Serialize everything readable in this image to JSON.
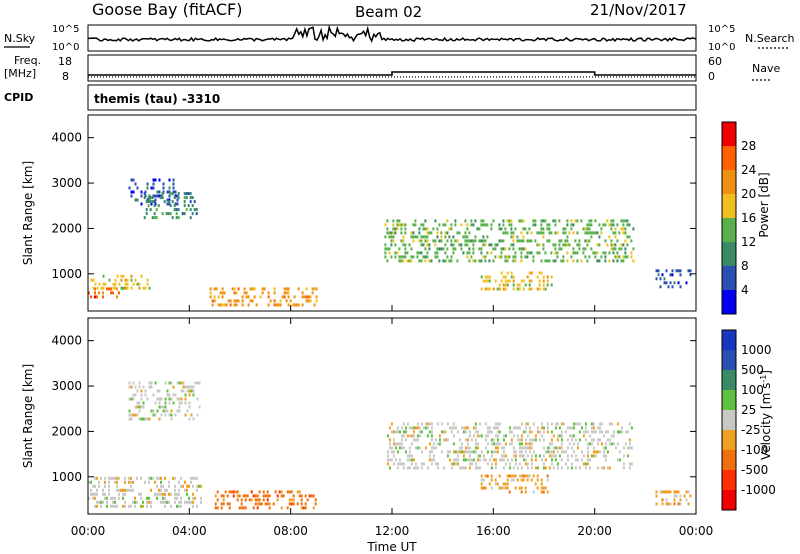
{
  "header": {
    "station": "Goose Bay (fitACF)",
    "beam": "Beam 02",
    "date": "21/Nov/2017"
  },
  "top_panels": {
    "nsky_label": "N.Sky",
    "nsky_ticks": [
      "10^5",
      "10^0"
    ],
    "nsearch_label": "N.Search",
    "nsearch_ticks": [
      "10^5",
      "10^0"
    ],
    "freq_label": "Freq.",
    "freq_unit": "[MHz]",
    "freq_ticks": [
      "18",
      "8"
    ],
    "nave_label": "Nave",
    "nave_ticks": [
      "60",
      "0"
    ],
    "cpid_label": "CPID",
    "cpid_value": "themis (tau) -3310"
  },
  "colors": {
    "power": [
      "#0000ee",
      "#2a4fb0",
      "#3a8a66",
      "#58b04a",
      "#f0c020",
      "#f09010",
      "#ff6000",
      "#ee0000"
    ],
    "velocity": [
      "#ee0000",
      "#ff3000",
      "#f07010",
      "#f0a020",
      "#c8c8c4",
      "#60c040",
      "#3a8a66",
      "#2a4fb0",
      "#1a36c0"
    ]
  },
  "chart_data": [
    {
      "type": "heatmap",
      "name": "power",
      "ylabel": "Slant Range [km]",
      "ylim": [
        180,
        4500
      ],
      "yticks": [
        "4000",
        "3000",
        "2000",
        "1000"
      ],
      "xlim": [
        0,
        24
      ],
      "colorbar_label": "Power [dB]",
      "colorbar_ticks": [
        "28",
        "24",
        "20",
        "16",
        "12",
        "8",
        "4"
      ],
      "regions": [
        {
          "t": [
            0.0,
            1.3
          ],
          "r": [
            450,
            700
          ],
          "level": 6
        },
        {
          "t": [
            0.1,
            2.4
          ],
          "r": [
            700,
            980
          ],
          "level": 4
        },
        {
          "t": [
            1.6,
            3.5
          ],
          "r": [
            2500,
            3100
          ],
          "level": 1
        },
        {
          "t": [
            2.2,
            4.3
          ],
          "r": [
            2200,
            2800
          ],
          "level": 2
        },
        {
          "t": [
            4.8,
            9.0
          ],
          "r": [
            300,
            700
          ],
          "level": 5
        },
        {
          "t": [
            11.7,
            21.5
          ],
          "r": [
            1300,
            2200
          ],
          "level": 3
        },
        {
          "t": [
            15.5,
            18.3
          ],
          "r": [
            650,
            1050
          ],
          "level": 4
        },
        {
          "t": [
            22.4,
            23.8
          ],
          "r": [
            700,
            1100
          ],
          "level": 1
        }
      ]
    },
    {
      "type": "heatmap",
      "name": "velocity",
      "ylabel": "Slant Range [km]",
      "ylim": [
        180,
        4500
      ],
      "yticks": [
        "4000",
        "3000",
        "2000",
        "1000"
      ],
      "xlim": [
        0,
        24
      ],
      "xticks": [
        "00:00",
        "04:00",
        "08:00",
        "12:00",
        "16:00",
        "20:00",
        "00:00"
      ],
      "xlabel": "Time UT",
      "colorbar_label": "Velocity [m s-1]",
      "colorbar_ticks": [
        "1000",
        "500",
        "100",
        "25",
        "-25",
        "-100",
        "-500",
        "-1000"
      ],
      "regions": [
        {
          "t": [
            0.0,
            4.5
          ],
          "r": [
            300,
            1000
          ],
          "level": 4
        },
        {
          "t": [
            1.6,
            4.4
          ],
          "r": [
            2300,
            3100
          ],
          "level": 4
        },
        {
          "t": [
            5.0,
            9.0
          ],
          "r": [
            300,
            700
          ],
          "level": 2
        },
        {
          "t": [
            11.8,
            21.5
          ],
          "r": [
            1200,
            2200
          ],
          "level": 4
        },
        {
          "t": [
            15.5,
            18.2
          ],
          "r": [
            650,
            1050
          ],
          "level": 3
        },
        {
          "t": [
            22.4,
            23.8
          ],
          "r": [
            400,
            700
          ],
          "level": 3
        }
      ]
    }
  ]
}
